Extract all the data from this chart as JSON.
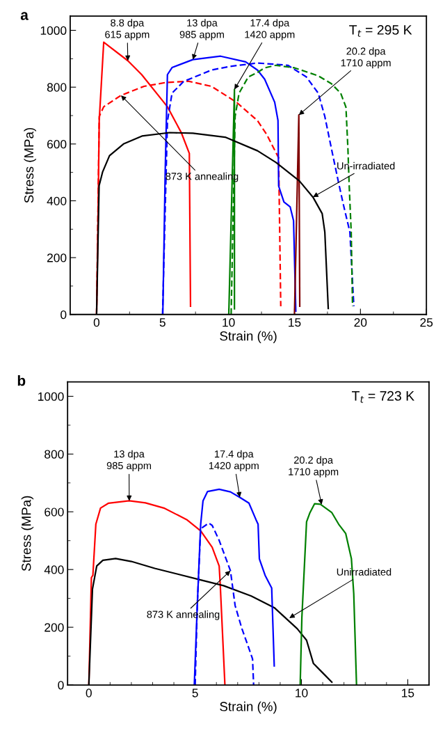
{
  "chart_data": [
    {
      "type": "line",
      "title": "a",
      "xlabel": "Strain (%)",
      "ylabel": "Stress (MPa)",
      "xlim": [
        -2,
        25
      ],
      "ylim": [
        0,
        1050
      ],
      "xticks": [
        0,
        {
          "value": 2.5,
          "label": null
        },
        5,
        {
          "value": 7.5,
          "label": null
        },
        10,
        {
          "value": 12.5,
          "label": null
        },
        15,
        {
          "value": 17.5,
          "label": null
        },
        20,
        {
          "value": 22.5,
          "label": null
        },
        25
      ],
      "yticks": [
        0,
        {
          "value": 100,
          "label": null
        },
        200,
        {
          "value": 300,
          "label": null
        },
        400,
        {
          "value": 500,
          "label": null
        },
        600,
        {
          "value": 700,
          "label": null
        },
        800,
        {
          "value": 900,
          "label": null
        },
        1000
      ],
      "grid": false,
      "legend": false,
      "series": [
        {
          "color": "#ff0000",
          "line_style": "solid",
          "x": [
            0,
            0.1,
            0.2,
            0.54,
            2.37,
            3.42,
            5.37,
            6.42,
            7.03,
            7.12
          ],
          "values": [
            0,
            300,
            682,
            958,
            893,
            844,
            731,
            640,
            567,
            29
          ]
        },
        {
          "color": "#ff0000",
          "line_style": "dashed",
          "x": [
            0,
            0.2,
            0.54,
            1.85,
            3.6,
            5.2,
            6.95,
            8.7,
            10.6,
            12.2,
            12.9,
            13.8,
            13.96
          ],
          "values": [
            0,
            697,
            731,
            771,
            803,
            816,
            821,
            803,
            747,
            682,
            633,
            551,
            29
          ]
        },
        {
          "color": "#0000ff",
          "line_style": "solid",
          "x": [
            5.02,
            5.2,
            5.37,
            5.72,
            7.3,
            9.4,
            11.3,
            12.2,
            12.74,
            13.5,
            13.75,
            13.8,
            14.2,
            14.67,
            14.93,
            15.1
          ],
          "values": [
            0,
            500,
            844,
            869,
            897,
            909,
            889,
            860,
            828,
            747,
            683,
            452,
            396,
            379,
            330,
            12
          ]
        },
        {
          "color": "#0000ff",
          "line_style": "dashed",
          "x": [
            5.0,
            5.37,
            5.72,
            6.6,
            8.7,
            10.1,
            12.2,
            14.5,
            15.9,
            16.8,
            17.3,
            17.8,
            18.35,
            18.7,
            19.2,
            19.5
          ],
          "values": [
            0,
            680,
            779,
            820,
            860,
            873,
            885,
            877,
            836,
            779,
            697,
            584,
            462,
            388,
            290,
            29
          ]
        },
        {
          "color": "#008000",
          "line_style": "solid",
          "x": [
            10.02,
            10.45,
            10.45
          ],
          "values": [
            0,
            792,
            20
          ]
        },
        {
          "color": "#008000",
          "line_style": "dashed",
          "x": [
            10.2,
            10.5,
            10.8,
            11.5,
            12.2,
            12.74,
            13.6,
            15.0,
            16.8,
            17.8,
            18.5,
            18.9,
            19.05,
            19.14,
            19.3,
            19.4
          ],
          "values": [
            0,
            697,
            779,
            836,
            852,
            868,
            877,
            868,
            840,
            812,
            779,
            730,
            584,
            462,
            290,
            29
          ]
        },
        {
          "color": "#800000",
          "line_style": "solid",
          "x": [
            15.0,
            15.33,
            15.4
          ],
          "values": [
            0,
            702,
            29
          ]
        },
        {
          "color": "#000000",
          "line_style": "solid",
          "x": [
            0,
            0.19,
            0.46,
            0.98,
            2.04,
            3.44,
            5.53,
            7.3,
            9.75,
            12.2,
            13.6,
            15.37,
            16.4,
            17.1,
            17.3,
            17.56
          ],
          "values": [
            0,
            453,
            502,
            559,
            600,
            628,
            640,
            638,
            624,
            576,
            535,
            470,
            413,
            355,
            290,
            21
          ]
        }
      ],
      "annotations": [
        {
          "text": "8.8 dpa\n615 appm",
          "x": 2.37,
          "y": 893
        },
        {
          "text": "13 dpa\n985 appm",
          "x": 7.3,
          "y": 897
        },
        {
          "text": "17.4 dpa\n1420 appm",
          "x": 10.45,
          "y": 792
        },
        {
          "text": "20.2 dpa\n1710 appm",
          "x": 15.33,
          "y": 702
        },
        {
          "text": "873 K annealing",
          "x": 1.85,
          "y": 771
        },
        {
          "text": "Un-irradiated",
          "x": 16.4,
          "y": 413
        },
        "T$_{t}$ = 295 K"
      ]
    },
    {
      "type": "line",
      "title": "b",
      "xlabel": "Strain (%)",
      "ylabel": "Stress (MPa)",
      "xlim": [
        -1,
        16
      ],
      "ylim": [
        0,
        1050
      ],
      "xticks": [
        0,
        {
          "value": 1,
          "label": null
        },
        {
          "value": 2,
          "label": null
        },
        {
          "value": 3,
          "label": null
        },
        {
          "value": 4,
          "label": null
        },
        5,
        {
          "value": 6,
          "label": null
        },
        {
          "value": 7,
          "label": null
        },
        {
          "value": 8,
          "label": null
        },
        {
          "value": 9,
          "label": null
        },
        10,
        {
          "value": 11,
          "label": null
        },
        {
          "value": 12,
          "label": null
        },
        {
          "value": 13,
          "label": null
        },
        {
          "value": 14,
          "label": null
        },
        15
      ],
      "yticks": [
        0,
        {
          "value": 100,
          "label": null
        },
        200,
        {
          "value": 300,
          "label": null
        },
        400,
        {
          "value": 500,
          "label": null
        },
        600,
        {
          "value": 700,
          "label": null
        },
        800,
        {
          "value": 900,
          "label": null
        },
        1000
      ],
      "grid": false,
      "legend": false,
      "series": [
        {
          "color": "#ff0000",
          "line_style": "solid",
          "x": [
            0,
            0.12,
            0.19,
            0.33,
            0.55,
            0.93,
            1.9,
            2.66,
            3.53,
            4.6,
            5.26,
            5.8,
            6.13,
            6.18,
            6.4
          ],
          "values": [
            0,
            372,
            380,
            557,
            613,
            630,
            638,
            631,
            613,
            573,
            534,
            477,
            412,
            348,
            0
          ]
        },
        {
          "color": "#000000",
          "line_style": "solid",
          "x": [
            0,
            0.17,
            0.37,
            0.66,
            1.26,
            2.0,
            3.1,
            4.18,
            5.26,
            6.34,
            7.64,
            8.72,
            9.8,
            10.24,
            10.56,
            11.0,
            11.43
          ],
          "values": [
            0,
            332,
            412,
            432,
            438,
            428,
            404,
            384,
            364,
            344,
            308,
            268,
            195,
            155,
            75,
            42,
            10
          ]
        },
        {
          "color": "#0000ff",
          "line_style": "solid",
          "x": [
            4.96,
            5.1,
            5.26,
            5.37,
            5.58,
            6.13,
            6.66,
            7.1,
            7.53,
            7.86,
            7.96,
            8.02,
            8.29,
            8.6,
            8.72
          ],
          "values": [
            0,
            275,
            557,
            638,
            670,
            678,
            669,
            650,
            630,
            573,
            557,
            437,
            380,
            336,
            66
          ]
        },
        {
          "color": "#0000ff",
          "line_style": "dashed",
          "x": [
            5.0,
            5.1,
            5.26,
            5.64,
            5.8,
            6.13,
            6.66,
            6.88,
            7.2,
            7.59,
            7.7,
            7.75
          ],
          "values": [
            0,
            275,
            541,
            561,
            553,
            501,
            396,
            275,
            195,
            114,
            90,
            0
          ]
        },
        {
          "color": "#008000",
          "line_style": "solid",
          "x": [
            9.94,
            10.02,
            10.24,
            10.4,
            10.62,
            10.89,
            11.43,
            11.75,
            12.08,
            12.35,
            12.46,
            12.59
          ],
          "values": [
            0,
            235,
            565,
            597,
            628,
            626,
            597,
            557,
            525,
            437,
            316,
            0
          ]
        }
      ],
      "annotations": [
        {
          "text": "13 dpa\n985 appm",
          "x": 1.9,
          "y": 638
        },
        {
          "text": "17.4 dpa\n1420 appm",
          "x": 7.1,
          "y": 650
        },
        {
          "text": "20.2 dpa\n1710 appm",
          "x": 10.95,
          "y": 625
        },
        {
          "text": "873 K annealing",
          "x": 6.66,
          "y": 396
        },
        {
          "text": "Unirradiated",
          "x": 9.43,
          "y": 232
        },
        "T$_{t}$ = 723 K"
      ]
    }
  ]
}
